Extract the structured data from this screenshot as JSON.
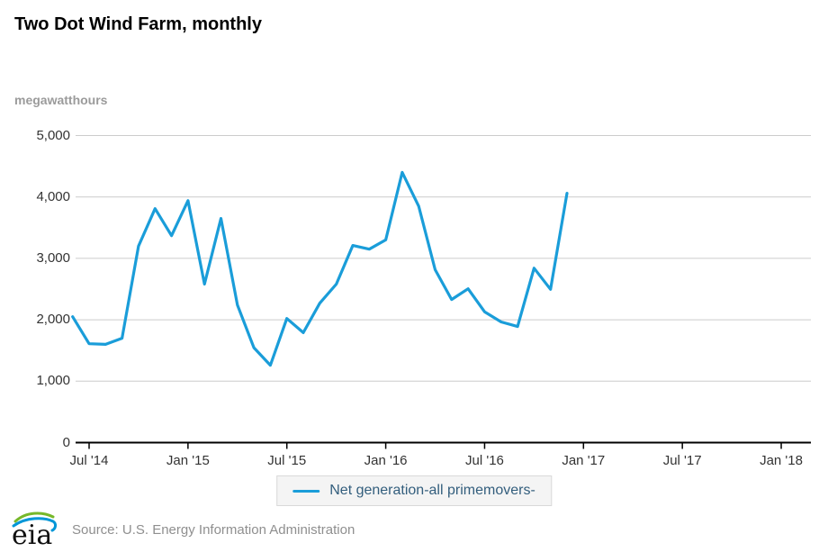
{
  "header": {
    "title": "Two Dot Wind Farm, monthly",
    "units_label": "megawatthours"
  },
  "colors": {
    "line_blue": "#1a9dd9",
    "grid_line": "#cccccc",
    "axis_line": "#000000",
    "axis_text": "#333333",
    "legend_text": "#335e7d",
    "muted_text": "#8f8f8f",
    "logo_green": "#76b82a",
    "logo_blue": "#0096d7"
  },
  "chart_data": {
    "type": "line",
    "title": "Two Dot Wind Farm, monthly",
    "xlabel": "",
    "ylabel": "megawatthours",
    "ylim": [
      0,
      5000
    ],
    "grid": "horizontal",
    "legend_position": "bottom-center",
    "x_range_shown": [
      "Jun 2014",
      "Mar 2018"
    ],
    "y_ticks": [
      {
        "label": "0",
        "value": 0
      },
      {
        "label": "1,000",
        "value": 1000
      },
      {
        "label": "2,000",
        "value": 2000
      },
      {
        "label": "3,000",
        "value": 3000
      },
      {
        "label": "4,000",
        "value": 4000
      },
      {
        "label": "5,000",
        "value": 5000
      }
    ],
    "x_ticks": [
      {
        "label": "Jul '14",
        "month_index": 1
      },
      {
        "label": "Jan '15",
        "month_index": 7
      },
      {
        "label": "Jul '15",
        "month_index": 13
      },
      {
        "label": "Jan '16",
        "month_index": 19
      },
      {
        "label": "Jul '16",
        "month_index": 25
      },
      {
        "label": "Jan '17",
        "month_index": 31
      },
      {
        "label": "Jul '17",
        "month_index": 37
      },
      {
        "label": "Jan '18",
        "month_index": 43
      }
    ],
    "series": [
      {
        "name": "Net generation-all primemovers-",
        "color": "#1a9dd9",
        "x": [
          "Jun '14",
          "Jul '14",
          "Aug '14",
          "Sep '14",
          "Oct '14",
          "Nov '14",
          "Dec '14",
          "Jan '15",
          "Feb '15",
          "Mar '15",
          "Apr '15",
          "May '15",
          "Jun '15",
          "Jul '15",
          "Aug '15",
          "Sep '15",
          "Oct '15",
          "Nov '15",
          "Dec '15",
          "Jan '16",
          "Feb '16",
          "Mar '16",
          "Apr '16",
          "May '16",
          "Jun '16",
          "Jul '16",
          "Aug '16",
          "Sep '16",
          "Oct '16",
          "Nov '16",
          "Dec '16"
        ],
        "values": [
          2050,
          1610,
          1600,
          1700,
          3200,
          3810,
          3370,
          3940,
          2580,
          3650,
          2240,
          1545,
          1260,
          2020,
          1790,
          2270,
          2580,
          3210,
          3150,
          3300,
          4400,
          3850,
          2815,
          2330,
          2505,
          2130,
          1965,
          1890,
          2840,
          2495,
          4060
        ]
      }
    ]
  },
  "legend": {
    "label": "Net generation-all primemovers-"
  },
  "footer": {
    "logo_text": "eia",
    "source": "Source: U.S. Energy Information Administration"
  }
}
